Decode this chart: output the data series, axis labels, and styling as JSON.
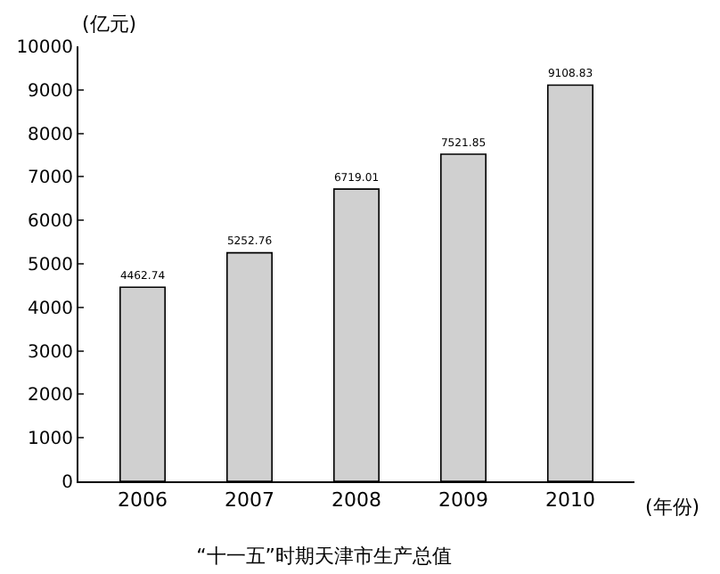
{
  "chart_data": {
    "type": "bar",
    "title": "“十一五”时期天津市生产总值",
    "xlabel": "(年份)",
    "ylabel": "(亿元)",
    "categories": [
      "2006",
      "2007",
      "2008",
      "2009",
      "2010"
    ],
    "values": [
      4462.74,
      5252.76,
      6719.01,
      7521.85,
      9108.83
    ],
    "color": "#d0d0d0",
    "ylim": [
      0,
      10000
    ],
    "yticks": [
      0,
      1000,
      2000,
      3000,
      4000,
      5000,
      6000,
      7000,
      8000,
      9000,
      10000
    ],
    "data_labels": true,
    "grid": false
  }
}
